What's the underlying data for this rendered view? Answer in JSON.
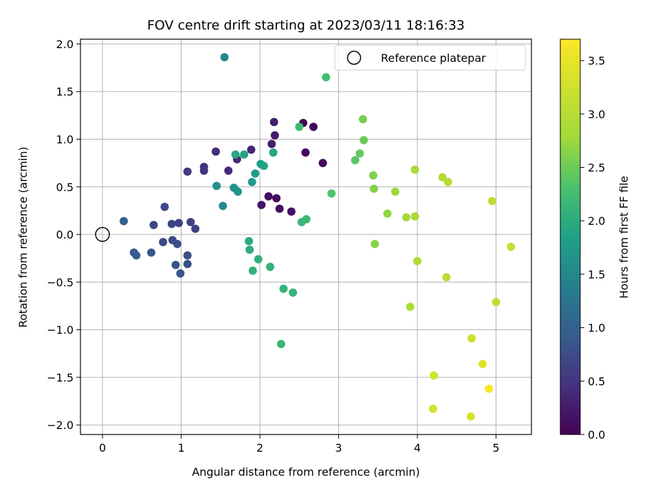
{
  "chart_data": {
    "type": "scatter",
    "title": "FOV centre drift starting at 2023/03/11 18:16:33",
    "xlabel": "Angular distance from reference (arcmin)",
    "ylabel": "Rotation from reference (arcmin)",
    "xlim": [
      -0.28,
      5.45
    ],
    "ylim": [
      -2.1,
      2.05
    ],
    "xticks": [
      0,
      1,
      2,
      3,
      4,
      5
    ],
    "yticks": [
      -2.0,
      -1.5,
      -1.0,
      -0.5,
      0.0,
      0.5,
      1.0,
      1.5,
      2.0
    ],
    "grid": true,
    "legend": {
      "location": "top-right",
      "entries": [
        "Reference platepar"
      ]
    },
    "reference_point": {
      "x": 0,
      "y": 0,
      "label": "Reference platepar"
    },
    "colorbar": {
      "label": "Hours from first FF file",
      "range": [
        0.0,
        3.7
      ],
      "ticks": [
        0.0,
        0.5,
        1.0,
        1.5,
        2.0,
        2.5,
        3.0,
        3.5
      ],
      "colormap": "viridis"
    },
    "series": [
      {
        "points": [
          {
            "x": 2.55,
            "y": 1.17,
            "c": 0.02
          },
          {
            "x": 2.68,
            "y": 1.13,
            "c": 0.03
          },
          {
            "x": 2.58,
            "y": 0.86,
            "c": 0.05
          },
          {
            "x": 2.8,
            "y": 0.75,
            "c": 0.06
          },
          {
            "x": 2.21,
            "y": 0.38,
            "c": 0.1
          },
          {
            "x": 2.11,
            "y": 0.4,
            "c": 0.12
          },
          {
            "x": 2.25,
            "y": 0.27,
            "c": 0.14
          },
          {
            "x": 2.4,
            "y": 0.24,
            "c": 0.16
          },
          {
            "x": 2.02,
            "y": 0.31,
            "c": 0.2
          },
          {
            "x": 2.19,
            "y": 1.04,
            "c": 0.22
          },
          {
            "x": 2.18,
            "y": 1.18,
            "c": 0.26
          },
          {
            "x": 2.15,
            "y": 0.95,
            "c": 0.3
          },
          {
            "x": 1.89,
            "y": 0.89,
            "c": 0.34
          },
          {
            "x": 1.71,
            "y": 0.79,
            "c": 0.38
          },
          {
            "x": 1.6,
            "y": 0.67,
            "c": 0.4
          },
          {
            "x": 1.44,
            "y": 0.87,
            "c": 0.42
          },
          {
            "x": 1.29,
            "y": 0.71,
            "c": 0.46
          },
          {
            "x": 1.29,
            "y": 0.67,
            "c": 0.48
          },
          {
            "x": 1.08,
            "y": 0.66,
            "c": 0.55
          },
          {
            "x": 1.18,
            "y": 0.06,
            "c": 0.6
          },
          {
            "x": 1.12,
            "y": 0.13,
            "c": 0.62
          },
          {
            "x": 0.97,
            "y": 0.12,
            "c": 0.64
          },
          {
            "x": 0.88,
            "y": 0.11,
            "c": 0.66
          },
          {
            "x": 0.79,
            "y": 0.29,
            "c": 0.68
          },
          {
            "x": 0.65,
            "y": 0.1,
            "c": 0.7
          },
          {
            "x": 0.77,
            "y": -0.08,
            "c": 0.72
          },
          {
            "x": 0.89,
            "y": -0.06,
            "c": 0.74
          },
          {
            "x": 0.95,
            "y": -0.1,
            "c": 0.76
          },
          {
            "x": 1.08,
            "y": -0.22,
            "c": 0.78
          },
          {
            "x": 1.08,
            "y": -0.31,
            "c": 0.8
          },
          {
            "x": 0.93,
            "y": -0.32,
            "c": 0.82
          },
          {
            "x": 0.99,
            "y": -0.41,
            "c": 0.84
          },
          {
            "x": 0.62,
            "y": -0.19,
            "c": 0.88
          },
          {
            "x": 0.4,
            "y": -0.19,
            "c": 0.9
          },
          {
            "x": 0.43,
            "y": -0.22,
            "c": 0.92
          },
          {
            "x": 0.27,
            "y": 0.14,
            "c": 0.96
          },
          {
            "x": 1.55,
            "y": 1.86,
            "c": 1.5
          },
          {
            "x": 1.53,
            "y": 0.3,
            "c": 1.55
          },
          {
            "x": 1.45,
            "y": 0.51,
            "c": 1.6
          },
          {
            "x": 1.67,
            "y": 0.49,
            "c": 1.65
          },
          {
            "x": 1.72,
            "y": 0.45,
            "c": 1.7
          },
          {
            "x": 1.9,
            "y": 0.55,
            "c": 1.75
          },
          {
            "x": 1.94,
            "y": 0.64,
            "c": 1.8
          },
          {
            "x": 2.01,
            "y": 0.74,
            "c": 1.85
          },
          {
            "x": 2.05,
            "y": 0.72,
            "c": 1.88
          },
          {
            "x": 2.17,
            "y": 0.86,
            "c": 1.9
          },
          {
            "x": 1.8,
            "y": 0.84,
            "c": 1.9
          },
          {
            "x": 1.69,
            "y": 0.84,
            "c": 1.92
          },
          {
            "x": 1.86,
            "y": -0.07,
            "c": 2.0
          },
          {
            "x": 1.87,
            "y": -0.16,
            "c": 2.02
          },
          {
            "x": 1.98,
            "y": -0.26,
            "c": 2.04
          },
          {
            "x": 1.91,
            "y": -0.38,
            "c": 2.06
          },
          {
            "x": 2.13,
            "y": -0.34,
            "c": 2.08
          },
          {
            "x": 2.3,
            "y": -0.57,
            "c": 2.1
          },
          {
            "x": 2.42,
            "y": -0.61,
            "c": 2.12
          },
          {
            "x": 2.27,
            "y": -1.15,
            "c": 2.14
          },
          {
            "x": 2.53,
            "y": 0.13,
            "c": 2.16
          },
          {
            "x": 2.59,
            "y": 0.16,
            "c": 2.18
          },
          {
            "x": 2.5,
            "y": 1.13,
            "c": 2.2
          },
          {
            "x": 2.84,
            "y": 1.65,
            "c": 2.25
          },
          {
            "x": 2.91,
            "y": 0.43,
            "c": 2.35
          },
          {
            "x": 3.21,
            "y": 0.78,
            "c": 2.4
          },
          {
            "x": 3.27,
            "y": 0.85,
            "c": 2.45
          },
          {
            "x": 3.32,
            "y": 0.99,
            "c": 2.5
          },
          {
            "x": 3.31,
            "y": 1.21,
            "c": 2.55
          },
          {
            "x": 3.44,
            "y": 0.62,
            "c": 2.6
          },
          {
            "x": 3.45,
            "y": 0.48,
            "c": 2.62
          },
          {
            "x": 3.46,
            "y": -0.1,
            "c": 2.64
          },
          {
            "x": 3.62,
            "y": 0.22,
            "c": 2.7
          },
          {
            "x": 3.72,
            "y": 0.45,
            "c": 2.75
          },
          {
            "x": 3.86,
            "y": 0.18,
            "c": 2.8
          },
          {
            "x": 3.97,
            "y": 0.19,
            "c": 2.82
          },
          {
            "x": 3.97,
            "y": 0.68,
            "c": 2.85
          },
          {
            "x": 3.91,
            "y": -0.76,
            "c": 2.88
          },
          {
            "x": 4.0,
            "y": -0.28,
            "c": 2.92
          },
          {
            "x": 4.32,
            "y": 0.6,
            "c": 2.95
          },
          {
            "x": 4.39,
            "y": 0.55,
            "c": 2.98
          },
          {
            "x": 4.37,
            "y": -0.45,
            "c": 3.02
          },
          {
            "x": 4.95,
            "y": 0.35,
            "c": 3.05
          },
          {
            "x": 5.0,
            "y": -0.71,
            "c": 3.08
          },
          {
            "x": 5.19,
            "y": -0.13,
            "c": 3.12
          },
          {
            "x": 4.69,
            "y": -1.09,
            "c": 3.2
          },
          {
            "x": 4.21,
            "y": -1.48,
            "c": 3.25
          },
          {
            "x": 4.2,
            "y": -1.83,
            "c": 3.3
          },
          {
            "x": 4.68,
            "y": -1.91,
            "c": 3.32
          },
          {
            "x": 4.83,
            "y": -1.36,
            "c": 3.4
          },
          {
            "x": 4.91,
            "y": -1.62,
            "c": 3.65
          }
        ]
      }
    ]
  }
}
